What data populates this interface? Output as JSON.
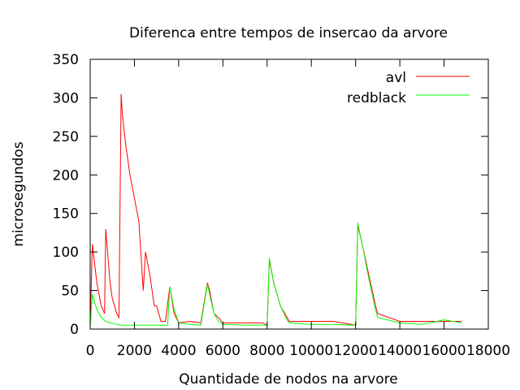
{
  "chart_data": {
    "type": "line",
    "title": "Diferenca entre tempos de insercao da arvore",
    "xlabel": "Quantidade de nodos na arvore",
    "ylabel": "microsegundos",
    "xlim": [
      0,
      18000
    ],
    "ylim": [
      0,
      350
    ],
    "x_ticks": [
      "0",
      "2000",
      "4000",
      "6000",
      "8000",
      "10000",
      "12000",
      "14000",
      "16000",
      "18000"
    ],
    "y_ticks": [
      "0",
      "50",
      "100",
      "150",
      "200",
      "250",
      "300",
      "350"
    ],
    "grid": false,
    "legend_position": "top-right",
    "series": [
      {
        "name": "avl",
        "color": "#ff0000",
        "x": [
          0,
          100,
          300,
          500,
          650,
          700,
          800,
          900,
          1000,
          1200,
          1300,
          1400,
          1450,
          1600,
          1800,
          2000,
          2200,
          2400,
          2500,
          2700,
          2900,
          3000,
          3200,
          3400,
          3600,
          3800,
          4000,
          4500,
          5000,
          5300,
          5400,
          5600,
          5800,
          6000,
          7000,
          7800,
          8000,
          8100,
          8300,
          8600,
          8900,
          9000,
          10000,
          11000,
          12000,
          12100,
          12300,
          12600,
          12900,
          13000,
          14000,
          15000,
          16000,
          16800
        ],
        "values": [
          5,
          110,
          60,
          30,
          20,
          130,
          95,
          60,
          40,
          20,
          15,
          305,
          280,
          240,
          200,
          170,
          140,
          50,
          100,
          70,
          30,
          30,
          10,
          10,
          55,
          20,
          8,
          10,
          8,
          60,
          50,
          20,
          15,
          8,
          8,
          8,
          5,
          90,
          60,
          30,
          15,
          10,
          10,
          10,
          5,
          135,
          110,
          70,
          30,
          20,
          10,
          10,
          10,
          10
        ]
      },
      {
        "name": "redblack",
        "color": "#00ff00",
        "x": [
          0,
          100,
          300,
          500,
          700,
          900,
          1200,
          1400,
          1600,
          2000,
          2500,
          3000,
          3500,
          3600,
          3800,
          4000,
          4500,
          5000,
          5300,
          5400,
          5600,
          5800,
          6000,
          7000,
          7800,
          8000,
          8100,
          8300,
          8600,
          8900,
          9000,
          10000,
          11000,
          12000,
          12100,
          12300,
          12600,
          12900,
          13000,
          14000,
          15000,
          16000,
          16800
        ],
        "values": [
          3,
          45,
          25,
          15,
          10,
          8,
          6,
          5,
          5,
          5,
          5,
          5,
          5,
          55,
          25,
          8,
          6,
          5,
          58,
          45,
          20,
          10,
          6,
          5,
          5,
          5,
          92,
          60,
          30,
          12,
          8,
          6,
          6,
          5,
          138,
          110,
          65,
          25,
          15,
          8,
          6,
          12,
          8
        ]
      }
    ]
  }
}
